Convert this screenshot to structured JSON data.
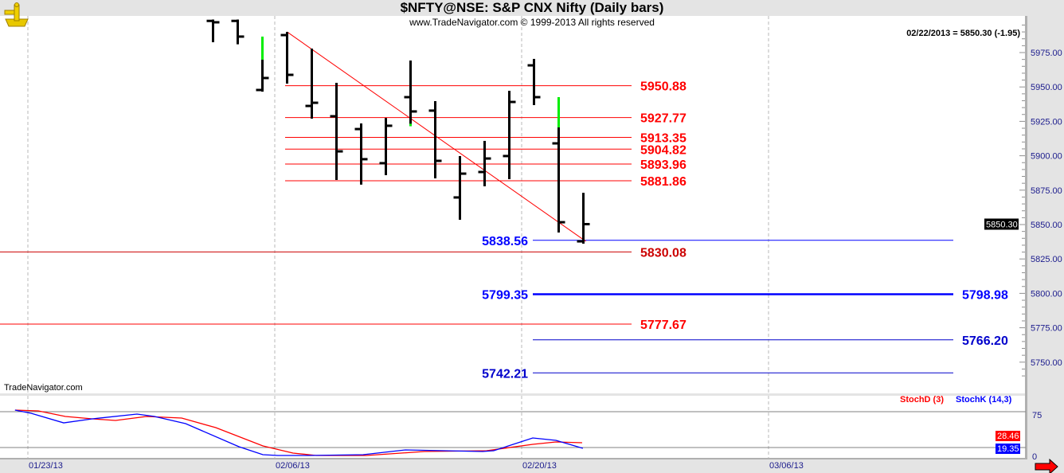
{
  "header": {
    "title": "$NFTY@NSE:  S&P CNX Nifty  (Daily bars)",
    "subtitle": "www.TradeNavigator.com © 1999-2013 All rights reserved",
    "readout": "02/22/2013 = 5850.30 (-1.95)",
    "logo_icon": "sextant-icon"
  },
  "brand_label": "TradeNavigator.com",
  "stoch_legend": {
    "d_label": "StochD (3)",
    "k_label": "StochK (14,3)"
  },
  "colors": {
    "up_highlight": "#00ee00",
    "bar": "#000000",
    "red": "#ff0000",
    "blue": "#0000ff",
    "axis_text": "#1a1a8c",
    "grid": "#b4b4b4"
  },
  "chart_data": {
    "type": "ohlc",
    "price_axis": {
      "ticks": [
        5975,
        5950,
        5925,
        5900,
        5875,
        5850,
        5825,
        5800,
        5775,
        5750
      ],
      "tick_labels": [
        "5975.00",
        "5950.00",
        "5925.00",
        "5900.00",
        "5875.00",
        "5850.00",
        "5825.00",
        "5800.00",
        "5775.00",
        "5750.00"
      ]
    },
    "date_axis": {
      "labels": [
        {
          "day": 0,
          "text": "01/23/13"
        },
        {
          "day": 10,
          "text": "02/06/13"
        },
        {
          "day": 20,
          "text": "02/20/13"
        },
        {
          "day": 30,
          "text": "03/06/13"
        }
      ]
    },
    "bars": [
      {
        "day": 7,
        "o": 5998,
        "h": 5999,
        "l": 5982.5,
        "c": 5997
      },
      {
        "day": 8,
        "o": 5998,
        "h": 5999,
        "l": 5981,
        "c": 5986.6
      },
      {
        "day": 9,
        "o": 5947.8,
        "h": 5986.6,
        "l": 5946.6,
        "c": 5956.5,
        "green_to": 5969.8
      },
      {
        "day": 10,
        "o": 5987.7,
        "h": 5990,
        "l": 5952.4,
        "c": 5958.8
      },
      {
        "day": 11,
        "o": 5936.2,
        "h": 5977.9,
        "l": 5927,
        "c": 5938.5
      },
      {
        "day": 12,
        "o": 5928.7,
        "h": 5953,
        "l": 5882.4,
        "c": 5903.2
      },
      {
        "day": 13,
        "o": 5919.4,
        "h": 5923.5,
        "l": 5879,
        "c": 5897.5
      },
      {
        "day": 14,
        "o": 5894.6,
        "h": 5927.5,
        "l": 5885.9,
        "c": 5921.8
      },
      {
        "day": 15,
        "o": 5942.6,
        "h": 5969.2,
        "l": 5921.5,
        "c": 5932.2,
        "green_from": 5923.3
      },
      {
        "day": 16,
        "o": 5932.8,
        "h": 5939.7,
        "l": 5883.6,
        "c": 5896.3
      },
      {
        "day": 17,
        "o": 5869.7,
        "h": 5899.8,
        "l": 5853.5,
        "c": 5887
      },
      {
        "day": 18,
        "o": 5888.2,
        "h": 5910.8,
        "l": 5877.8,
        "c": 5898
      },
      {
        "day": 19,
        "o": 5899.8,
        "h": 5947.2,
        "l": 5883,
        "c": 5939.1
      },
      {
        "day": 20,
        "o": 5965.7,
        "h": 5970.4,
        "l": 5936.8,
        "c": 5942.6
      },
      {
        "day": 21,
        "o": 5909,
        "h": 5942.6,
        "l": 5844.2,
        "c": 5851.7,
        "green_to": 5920.6
      },
      {
        "day": 22,
        "o": 5837.8,
        "h": 5873.1,
        "l": 5836.1,
        "c": 5850.3
      }
    ],
    "last_price": "5850.30",
    "trendline": {
      "from": {
        "day": 10,
        "price": 5990
      },
      "to": {
        "day": 22.1,
        "price": 5837.8
      }
    },
    "levels": [
      {
        "value": 5950.88,
        "label": "5950.88",
        "color": "#ff0000",
        "kind": "red-short"
      },
      {
        "value": 5927.77,
        "label": "5927.77",
        "color": "#ff0000",
        "kind": "red-short"
      },
      {
        "value": 5913.35,
        "label": "5913.35",
        "color": "#ff0000",
        "kind": "red-short"
      },
      {
        "value": 5904.82,
        "label": "5904.82",
        "color": "#ff0000",
        "kind": "red-short"
      },
      {
        "value": 5893.96,
        "label": "5893.96",
        "color": "#ff0000",
        "kind": "red-short"
      },
      {
        "value": 5881.86,
        "label": "5881.86",
        "color": "#ff0000",
        "kind": "red-short"
      },
      {
        "value": 5830.08,
        "label": "5830.08",
        "color": "#cc0000",
        "kind": "red-long"
      },
      {
        "value": 5777.67,
        "label": "5777.67",
        "color": "#ff0000",
        "kind": "red-long"
      },
      {
        "value": 5838.56,
        "label": "5838.56",
        "color": "#0000ff",
        "kind": "blue-left"
      },
      {
        "value": 5799.35,
        "label": "5799.35",
        "right_label": "5798.98",
        "color": "#0000ff",
        "kind": "blue-both"
      },
      {
        "value": 5766.2,
        "label": "5766.20",
        "color": "#0000cc",
        "kind": "blue-right"
      },
      {
        "value": 5742.21,
        "label": "5742.21",
        "color": "#0000cc",
        "kind": "blue-left"
      }
    ],
    "stochastic": {
      "axis_labels": [
        "75",
        "0"
      ],
      "ref_lines": [
        80,
        20
      ],
      "k_last": "19.35",
      "d_last": "28.46",
      "k": [
        [
          -0.52,
          82.7
        ],
        [
          0.13,
          77.3
        ],
        [
          1.45,
          61.3
        ],
        [
          2.61,
          68
        ],
        [
          4.42,
          76
        ],
        [
          5.13,
          72
        ],
        [
          6.39,
          60
        ],
        [
          8.55,
          21.3
        ],
        [
          9.52,
          8
        ],
        [
          10.13,
          6.7
        ],
        [
          11.39,
          6.7
        ],
        [
          13.58,
          8
        ],
        [
          15.29,
          16
        ],
        [
          18.42,
          13.3
        ],
        [
          18.87,
          14.7
        ],
        [
          20.45,
          36
        ],
        [
          21.39,
          32
        ],
        [
          22.48,
          18.7
        ]
      ],
      "d": [
        [
          -0.52,
          82.7
        ],
        [
          0.42,
          81.3
        ],
        [
          1.52,
          72
        ],
        [
          2.61,
          68
        ],
        [
          3.55,
          65.3
        ],
        [
          4.81,
          72
        ],
        [
          6.23,
          69.3
        ],
        [
          7.61,
          53.3
        ],
        [
          9.52,
          22.7
        ],
        [
          10.74,
          10.7
        ],
        [
          11.68,
          6.7
        ],
        [
          13.71,
          6.7
        ],
        [
          16.06,
          13.3
        ],
        [
          18.58,
          14.7
        ],
        [
          20.45,
          25.3
        ],
        [
          21.39,
          29.3
        ],
        [
          22.45,
          28
        ]
      ]
    }
  }
}
